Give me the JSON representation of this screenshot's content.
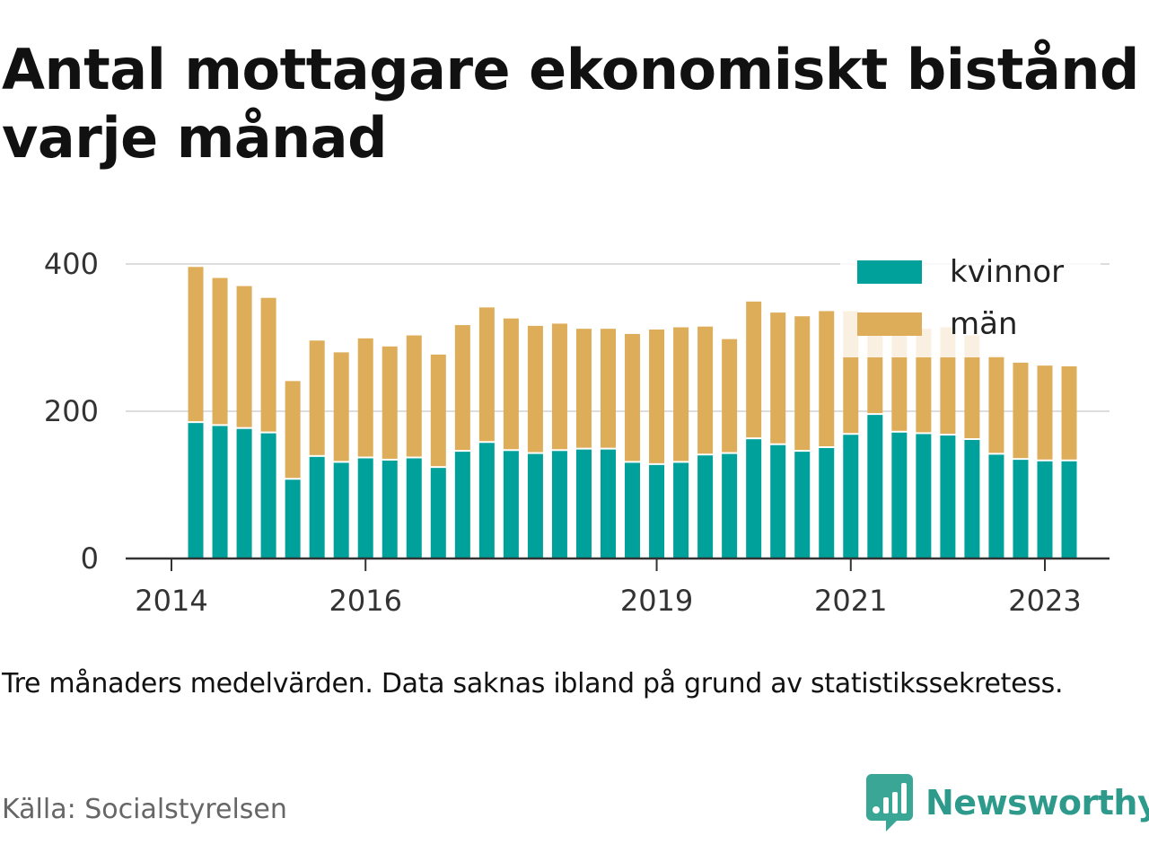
{
  "title": "Antal mottagare ekonomiskt bistånd varje månad",
  "note": "Tre månaders medelvärden. Data saknas ibland på grund av statistikssekretess.",
  "source": "Källa: Socialstyrelsen",
  "brand": {
    "name": "Newsworthy",
    "icon": "newsworthy-logo-icon",
    "color": "#2d9a8c"
  },
  "chart_data": {
    "type": "bar",
    "stacked": true,
    "grid": true,
    "legend_position": "top-right",
    "ylim": [
      0,
      400
    ],
    "yticks": [
      0,
      200,
      400
    ],
    "xticks": [
      2014,
      2016,
      2019,
      2021,
      2023
    ],
    "x": [
      2014.25,
      2014.5,
      2014.75,
      2015.0,
      2015.25,
      2015.5,
      2015.75,
      2016.0,
      2016.25,
      2016.5,
      2016.75,
      2017.0,
      2017.25,
      2017.5,
      2017.75,
      2018.0,
      2018.25,
      2018.5,
      2018.75,
      2019.0,
      2019.25,
      2019.5,
      2019.75,
      2020.0,
      2020.25,
      2020.5,
      2020.75,
      2021.0,
      2021.25,
      2021.5,
      2021.75,
      2022.0,
      2022.25,
      2022.5,
      2022.75,
      2023.0,
      2023.25
    ],
    "series": [
      {
        "name": "kvinnor",
        "color": "#00a19a",
        "values": [
          184,
          180,
          176,
          170,
          107,
          138,
          130,
          136,
          133,
          136,
          123,
          145,
          157,
          146,
          142,
          146,
          148,
          148,
          130,
          127,
          130,
          140,
          142,
          162,
          154,
          145,
          150,
          168,
          195,
          171,
          169,
          167,
          161,
          141,
          134,
          132,
          132
        ]
      },
      {
        "name": "män",
        "color": "#ddad5a",
        "values": [
          212,
          201,
          194,
          184,
          134,
          158,
          150,
          163,
          155,
          167,
          154,
          172,
          184,
          180,
          174,
          173,
          164,
          164,
          175,
          184,
          184,
          175,
          156,
          187,
          180,
          184,
          186,
          168,
          126,
          142,
          143,
          147,
          142,
          134,
          132,
          130,
          129
        ]
      }
    ]
  }
}
